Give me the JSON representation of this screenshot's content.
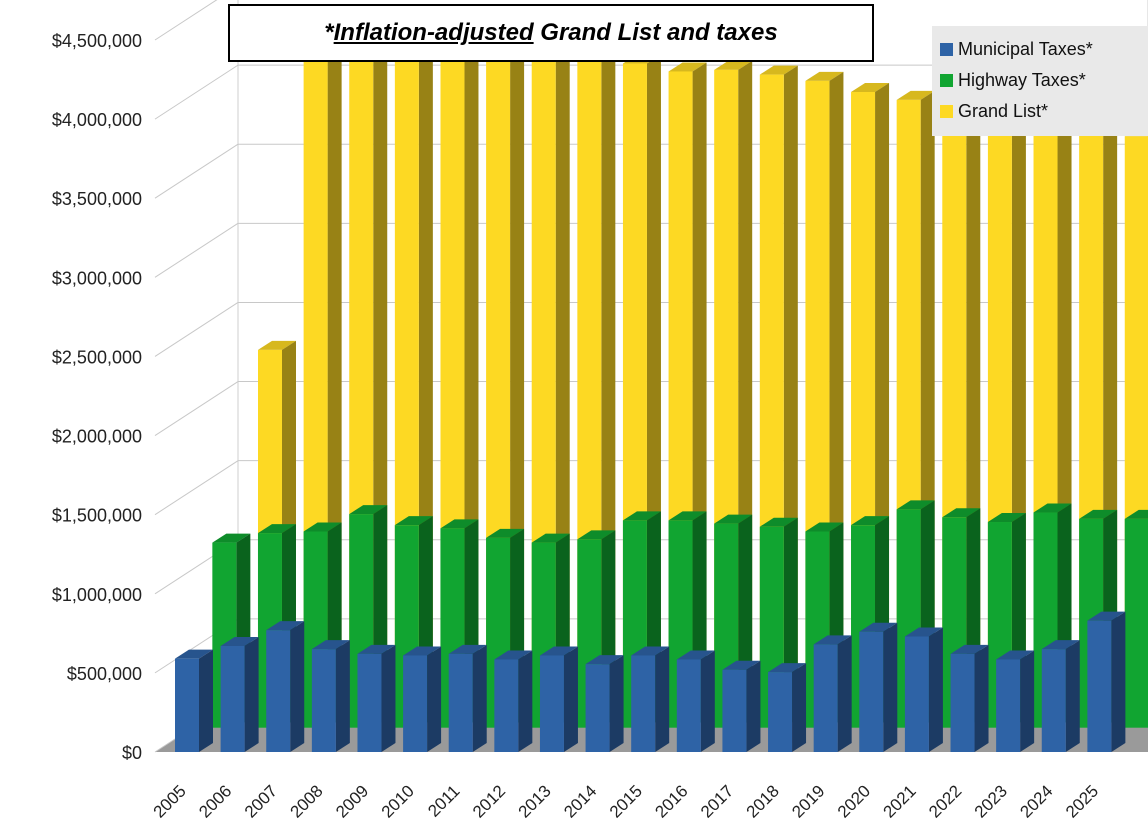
{
  "chart_data": {
    "type": "bar",
    "title_prefix": "*",
    "title_underlined": "Inflation-adjusted",
    "title_rest": " Grand List and taxes",
    "categories": [
      "2005",
      "2006",
      "2007",
      "2008",
      "2009",
      "2010",
      "2011",
      "2012",
      "2013",
      "2014",
      "2015",
      "2016",
      "2017",
      "2018",
      "2019",
      "2020",
      "2021",
      "2022",
      "2023",
      "2024",
      "2025"
    ],
    "series": [
      {
        "name": "Municipal Taxes*",
        "color": "#2e63a6",
        "values": [
          590000,
          670000,
          770000,
          650000,
          620000,
          610000,
          620000,
          585000,
          610000,
          555000,
          610000,
          585000,
          520000,
          505000,
          680000,
          760000,
          730000,
          620000,
          585000,
          650000,
          830000
        ]
      },
      {
        "name": "Highway Taxes*",
        "color": "#11a531",
        "values": [
          1170000,
          1230000,
          1240000,
          1350000,
          1280000,
          1260000,
          1200000,
          1170000,
          1190000,
          1310000,
          1310000,
          1290000,
          1270000,
          1240000,
          1280000,
          1380000,
          1330000,
          1300000,
          1360000,
          1320000,
          1320000
        ]
      },
      {
        "name": "Grand List*",
        "color": "#fdd923",
        "values": [
          2200000,
          4320000,
          4290000,
          4200000,
          4230000,
          4190000,
          4090000,
          4040000,
          4010000,
          3960000,
          3970000,
          3940000,
          3900000,
          3830000,
          3780000,
          3750000,
          3890000,
          3680000,
          3590000,
          3550000,
          3450000
        ]
      }
    ],
    "ylim": [
      0,
      4500000
    ],
    "y_ticks": [
      "$0",
      "$500,000",
      "$1,000,000",
      "$1,500,000",
      "$2,000,000",
      "$2,500,000",
      "$3,000,000",
      "$3,500,000",
      "$4,000,000",
      "$4,500,000"
    ],
    "grid": true,
    "legend_position": "top-right",
    "style": "3d-depth"
  }
}
